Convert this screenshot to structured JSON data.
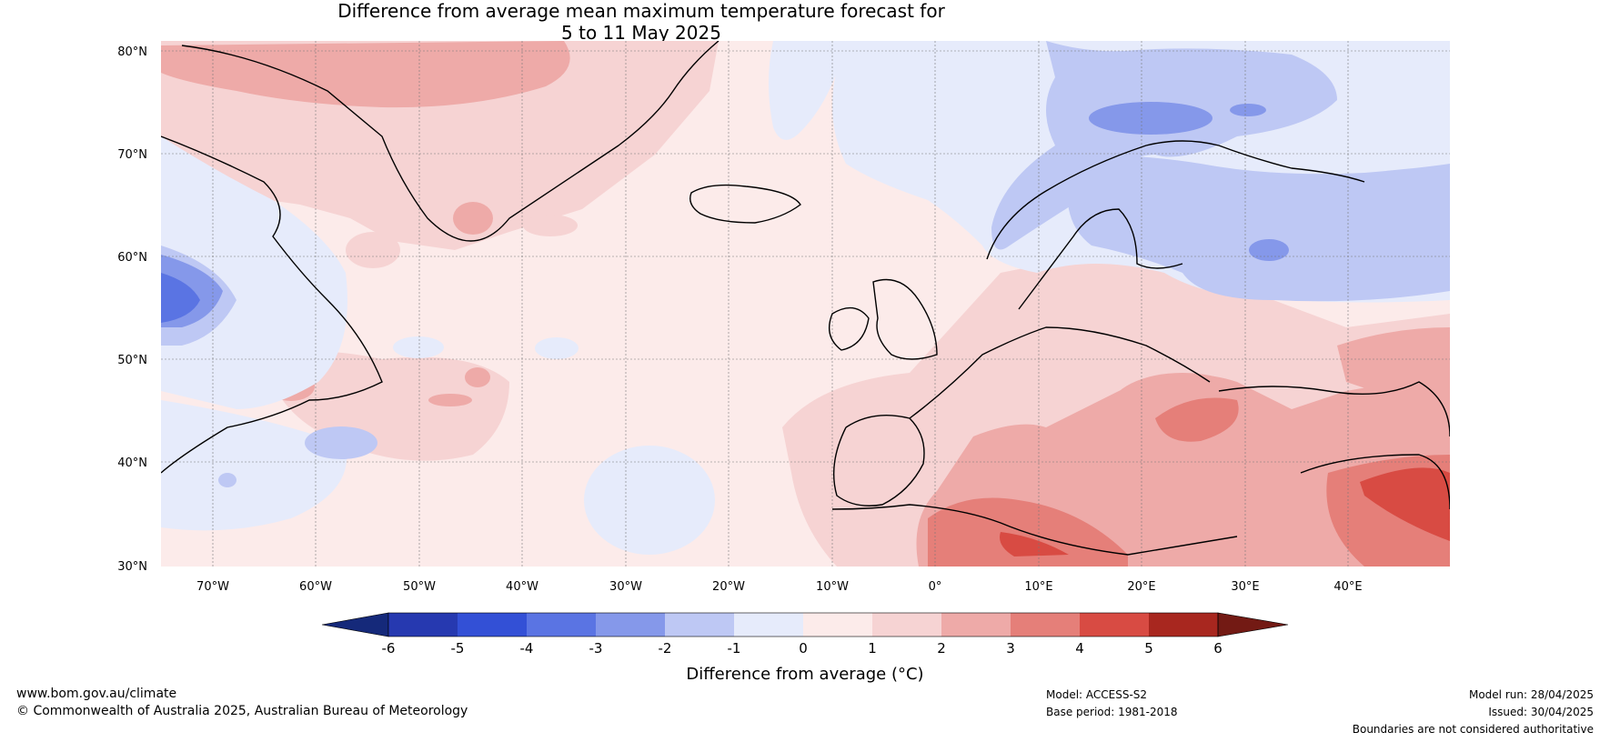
{
  "title": {
    "line1": "Difference from average mean maximum temperature forecast for",
    "line2": "5 to 11 May 2025"
  },
  "map": {
    "lat_labels": [
      "80°N",
      "70°N",
      "60°N",
      "50°N",
      "40°N",
      "30°N"
    ],
    "lon_labels": [
      "70°W",
      "60°W",
      "50°W",
      "40°W",
      "30°W",
      "20°W",
      "10°W",
      "0°",
      "10°E",
      "20°E",
      "30°E",
      "40°E"
    ]
  },
  "colorbar": {
    "ticks": [
      "-6",
      "-5",
      "-4",
      "-3",
      "-2",
      "-1",
      "0",
      "1",
      "2",
      "3",
      "4",
      "5",
      "6"
    ],
    "colors": [
      "#15297a",
      "#2639b0",
      "#3350d6",
      "#5a74e3",
      "#8598ea",
      "#bec8f4",
      "#e6ebfb",
      "#fcebea",
      "#f6d3d3",
      "#eeaaa8",
      "#e57f79",
      "#d84b43",
      "#a8271f",
      "#731a14"
    ],
    "label": "Difference from average (°C)"
  },
  "footer": {
    "website": "www.bom.gov.au/climate",
    "copyright": "© Commonwealth of Australia 2025, Australian Bureau of Meteorology",
    "model": "Model: ACCESS-S2",
    "base_period": "Base period: 1981-2018",
    "model_run": "Model run: 28/04/2025",
    "issued": "Issued: 30/04/2025",
    "disclaimer": "Boundaries are not considered authoritative"
  }
}
